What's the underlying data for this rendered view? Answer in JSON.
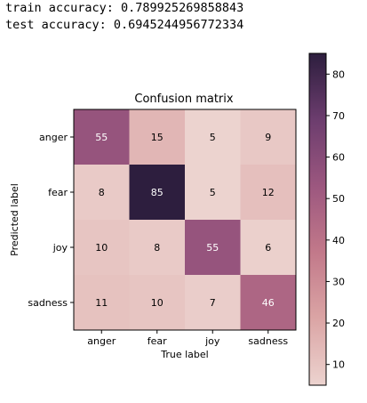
{
  "output": {
    "line1": "train accuracy: 0.789925269858843",
    "line2": "test accuracy: 0.6945244956772334"
  },
  "chart_data": {
    "type": "heatmap",
    "title": "Confusion matrix",
    "xlabel": "True label",
    "ylabel": "Predicted label",
    "x_categories": [
      "anger",
      "fear",
      "joy",
      "sadness"
    ],
    "y_categories": [
      "anger",
      "fear",
      "joy",
      "sadness"
    ],
    "values": [
      [
        55,
        15,
        5,
        9
      ],
      [
        8,
        85,
        5,
        12
      ],
      [
        10,
        8,
        55,
        6
      ],
      [
        11,
        10,
        7,
        46
      ]
    ],
    "colorbar": {
      "min": 5,
      "max": 85,
      "ticks": [
        10,
        20,
        30,
        40,
        50,
        60,
        70,
        80
      ]
    },
    "colormap": [
      "#ecd3cf",
      "#dba5a5",
      "#c2798a",
      "#9c577f",
      "#6c3d6e",
      "#2d1e3e"
    ]
  }
}
